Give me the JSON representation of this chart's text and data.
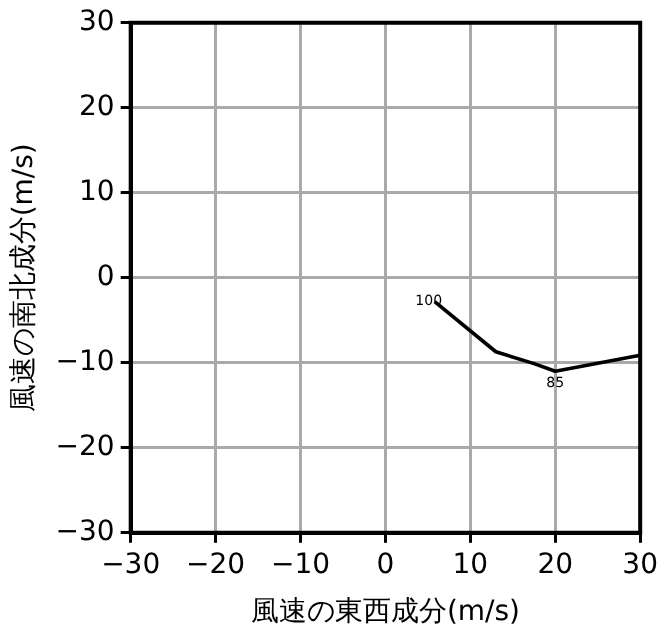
{
  "chart_data": {
    "type": "line",
    "xlabel": "風速の東西成分(m/s)",
    "ylabel": "風速の南北成分(m/s)",
    "xlim": [
      -30,
      30
    ],
    "ylim": [
      -30,
      30
    ],
    "xticks": [
      -30,
      -20,
      -10,
      0,
      10,
      20,
      30
    ],
    "yticks": [
      -30,
      -20,
      -10,
      0,
      10,
      20,
      30
    ],
    "grid": true,
    "legend": false,
    "marker": "none",
    "series": [
      {
        "color": "#000000",
        "x": [
          5.8,
          13.0,
          17.5,
          20.0,
          30.0
        ],
        "values": [
          -2.8,
          -8.7,
          -10.1,
          -11.0,
          -9.1
        ]
      }
    ],
    "annotations": [
      {
        "text": "100",
        "x": 5.8,
        "y": -2.8
      },
      {
        "text": "85",
        "x": 20.0,
        "y": -11.0
      }
    ]
  }
}
